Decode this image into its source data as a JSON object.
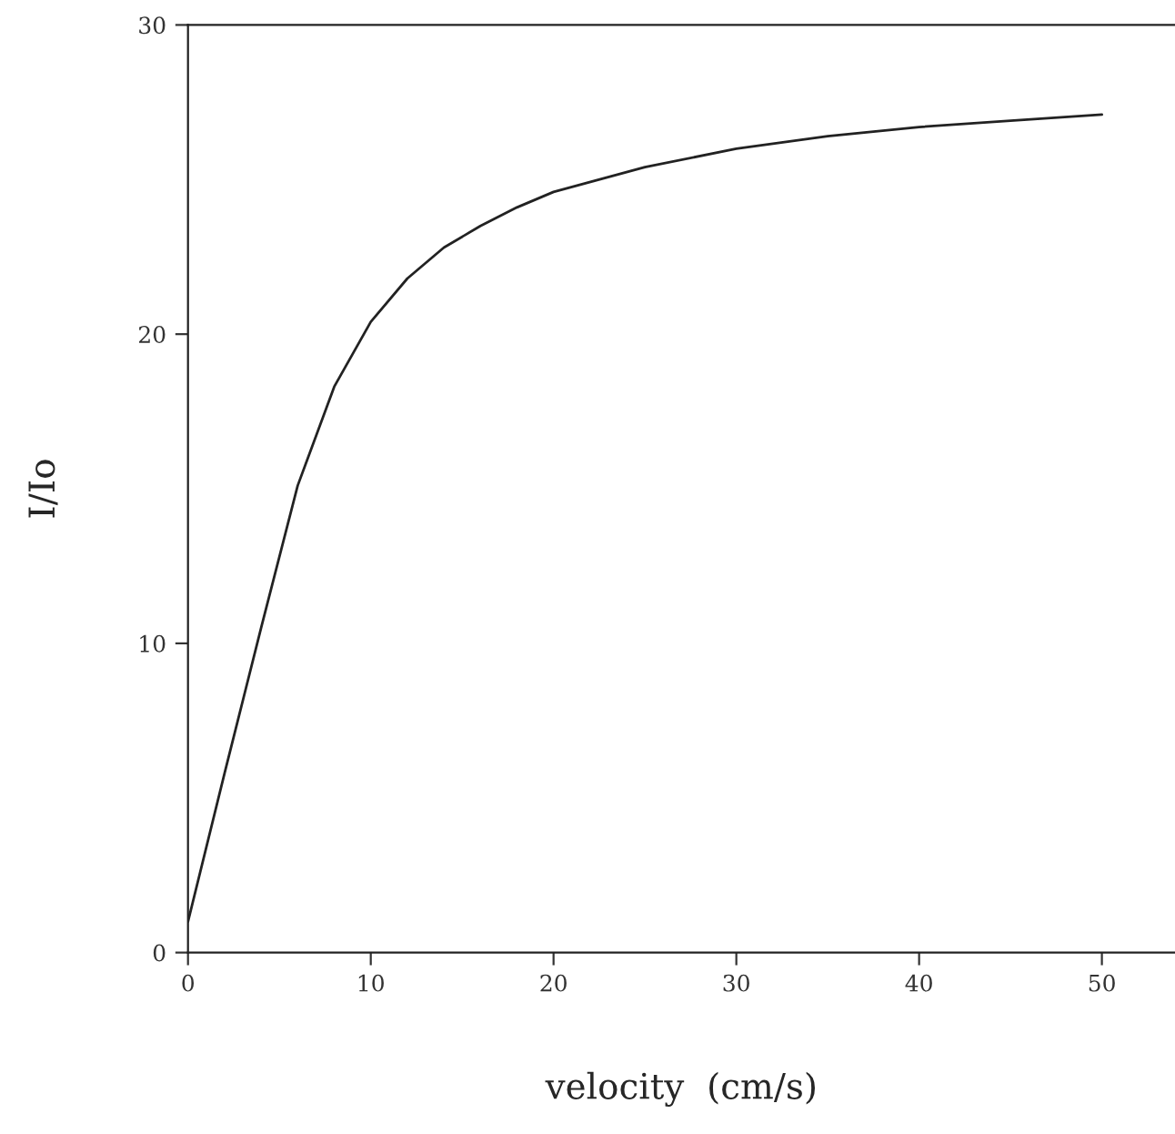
{
  "chart_data": {
    "type": "line",
    "xlabel": "velocity  (cm/s)",
    "ylabel": "I/Io",
    "x": [
      0,
      2,
      4,
      6,
      8,
      10,
      12,
      14,
      16,
      18,
      20,
      25,
      30,
      35,
      40,
      45,
      50
    ],
    "series": [
      {
        "color": "#222222",
        "values": [
          1.0,
          5.8,
          10.5,
          15.1,
          18.3,
          20.4,
          21.8,
          22.8,
          23.5,
          24.1,
          24.6,
          25.4,
          26.0,
          26.4,
          26.7,
          26.9,
          27.1
        ]
      }
    ],
    "xlim": [
      0,
      54
    ],
    "ylim": [
      0,
      30
    ],
    "xticks": [
      0,
      10,
      20,
      30,
      40,
      50
    ],
    "yticks": [
      0,
      10,
      20,
      30
    ],
    "grid": false,
    "legend": false,
    "marker": "none",
    "line_style": "solid"
  }
}
